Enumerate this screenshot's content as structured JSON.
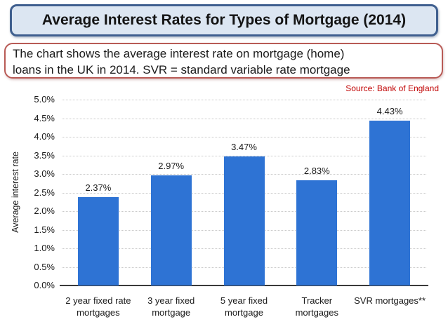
{
  "page": {
    "title": "Average Interest Rates for Types of Mortgage (2014)",
    "subtitle_line1": "The chart shows the average interest rate on mortgage (home)",
    "subtitle_line2": "loans in the UK in 2014. SVR = standard variable rate mortgage",
    "source": "Source: Bank of England"
  },
  "colors": {
    "bar_fill": "#2e73d4",
    "title_box_bg": "#dce6f2",
    "title_box_border": "#3f5f8f",
    "subtitle_box_border": "#b85a55",
    "source_text": "#c00000",
    "gridline": "#c9c9c9",
    "axis_line": "#3a3a3a",
    "text": "#1a1a1a"
  },
  "chart_data": {
    "type": "bar",
    "title": "Average Interest Rates for Types of Mortgage (2014)",
    "source": "Source: Bank of England",
    "categories": [
      "2 year fixed rate mortgages",
      "3 year fixed mortgage",
      "5 year fixed mortgage",
      "Tracker mortgages",
      "SVR mortgages**"
    ],
    "categories_wrapped": [
      [
        "2 year fixed rate",
        "mortgages"
      ],
      [
        "3 year fixed",
        "mortgage"
      ],
      [
        "5 year fixed",
        "mortgage"
      ],
      [
        "Tracker",
        "mortgages"
      ],
      [
        "SVR mortgages**"
      ]
    ],
    "values": [
      2.37,
      2.97,
      3.47,
      2.83,
      4.43
    ],
    "value_labels": [
      "2.37%",
      "2.97%",
      "3.47%",
      "2.83%",
      "4.43%"
    ],
    "xlabel": "",
    "ylabel": "Average interest rate",
    "ylim": [
      0,
      5
    ],
    "ytick_step": 0.5,
    "yticks": [
      "5.0%",
      "4.5%",
      "4.0%",
      "3.5%",
      "3.0%",
      "2.5%",
      "2.0%",
      "1.5%",
      "1.0%",
      "0.5%",
      "0.0%"
    ],
    "grid": "horizontal-dotted",
    "legend": "none"
  }
}
